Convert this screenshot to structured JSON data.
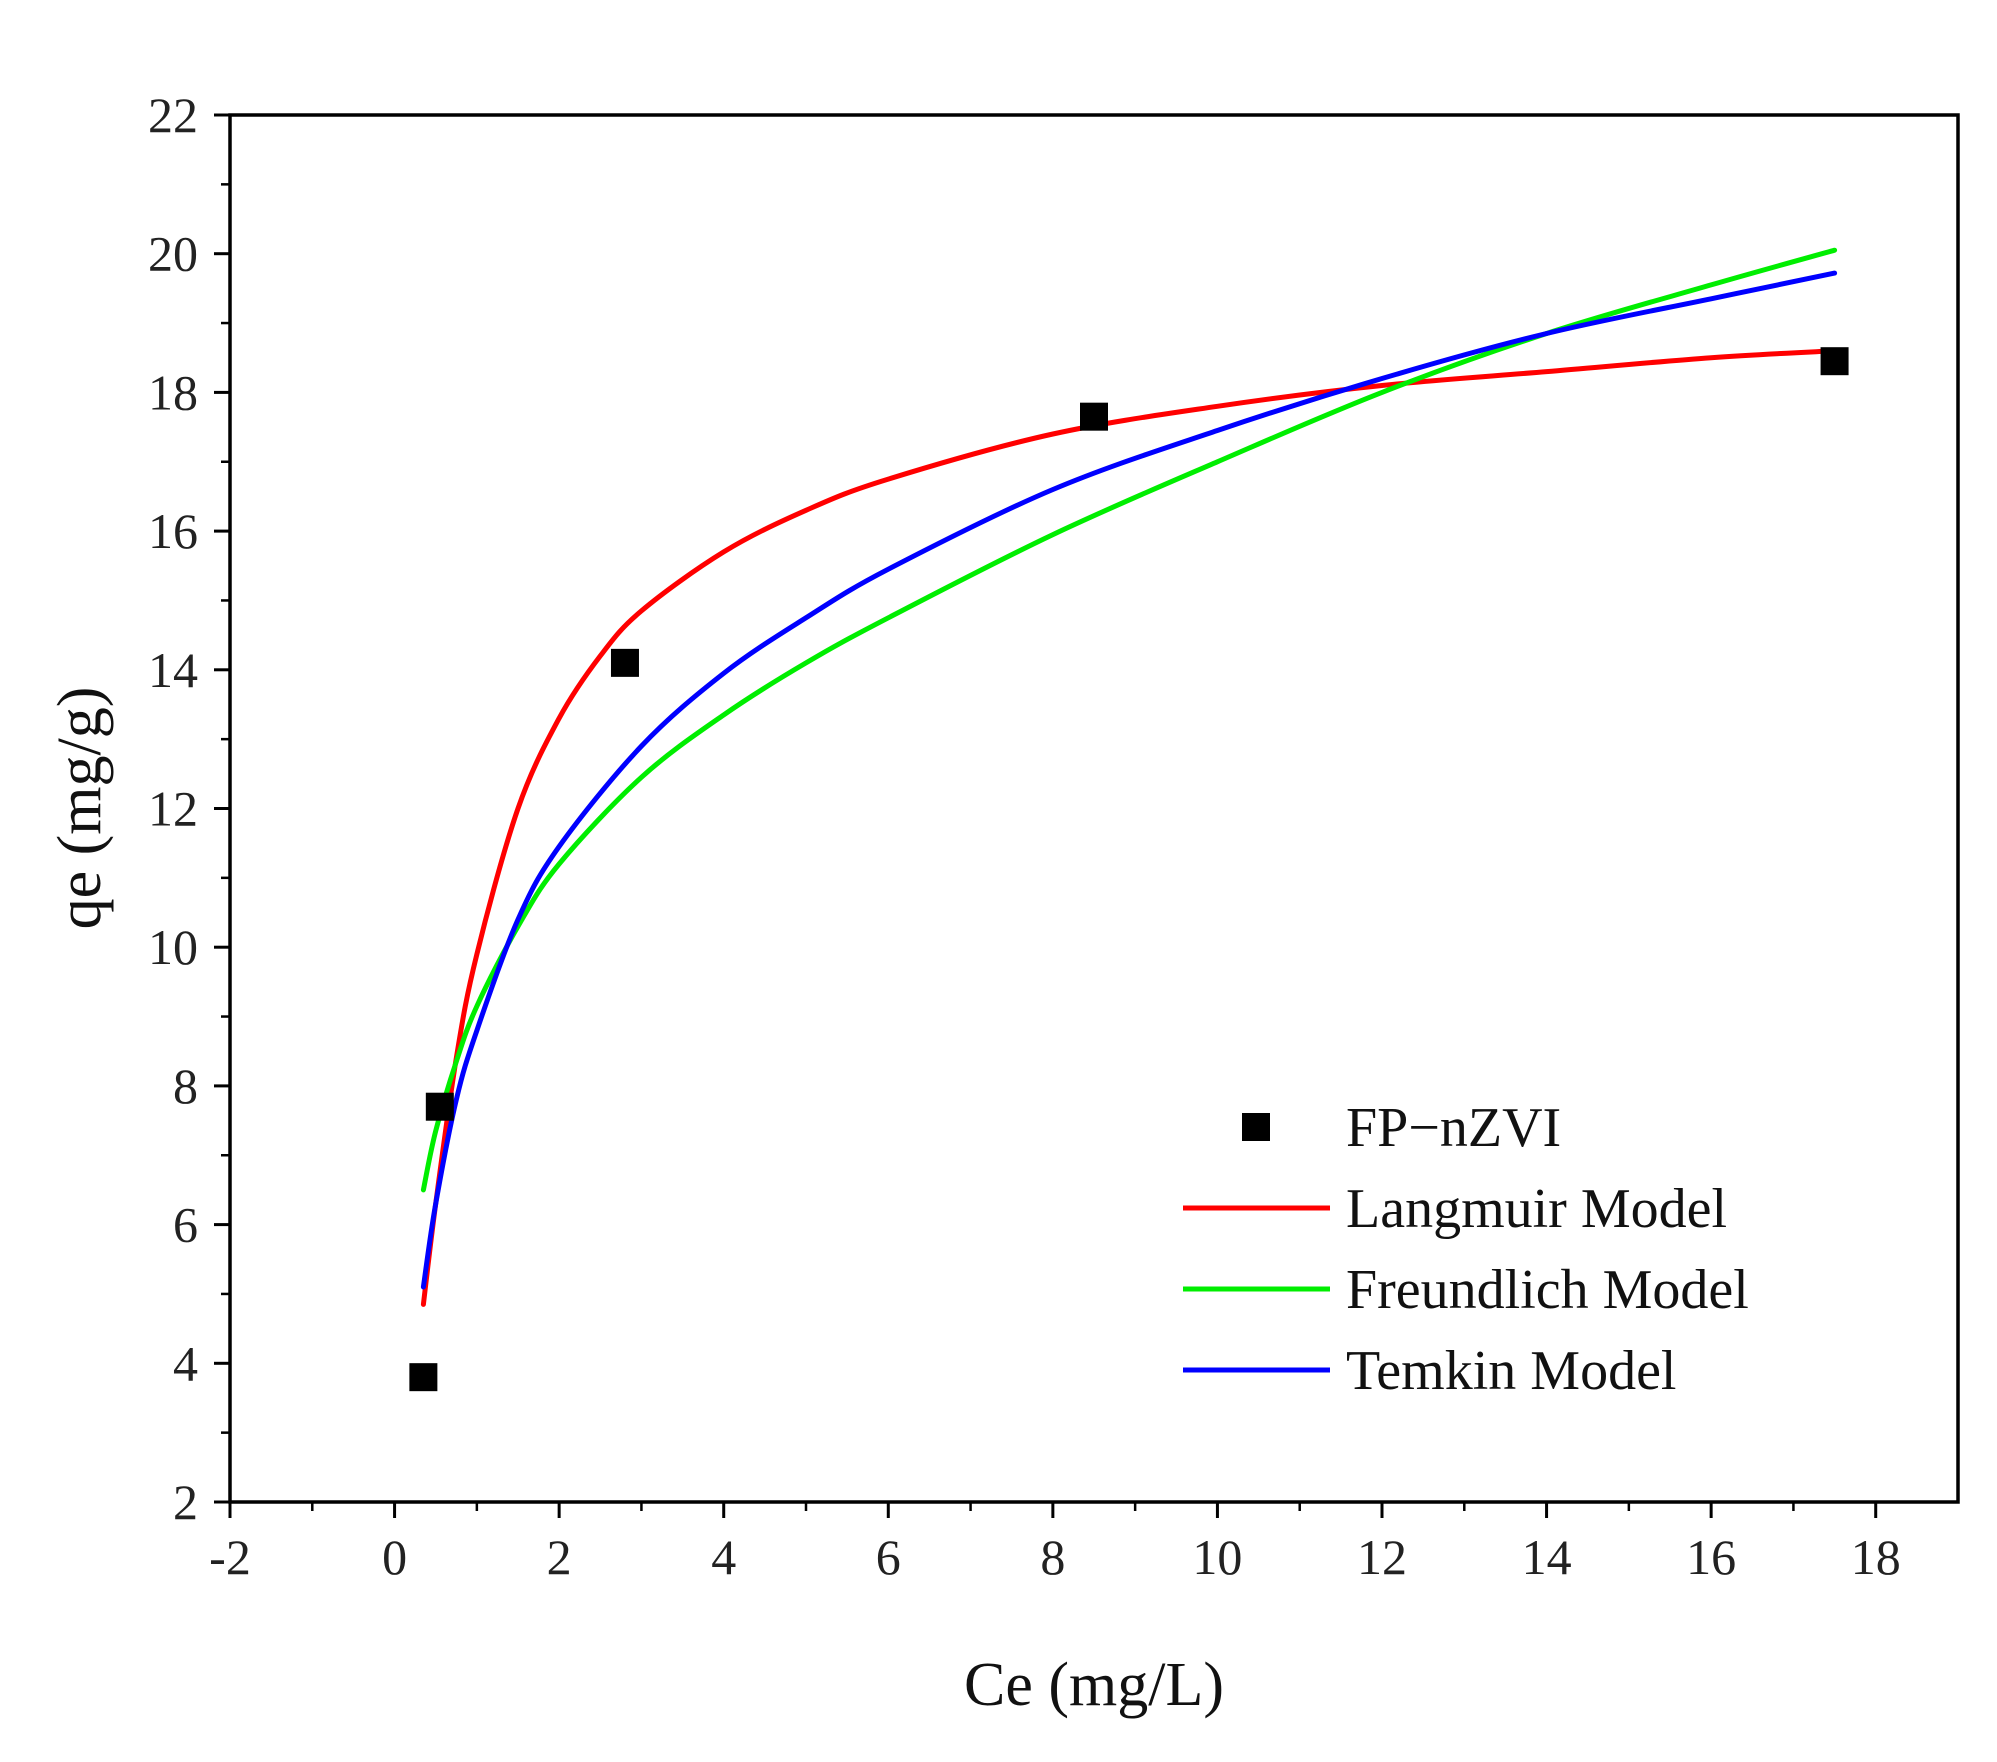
{
  "chart_data": {
    "type": "scatter",
    "title": "",
    "xlabel": "Ce (mg/L)",
    "ylabel": "qe (mg/g)",
    "xlim": [
      -2,
      19
    ],
    "ylim": [
      2,
      22
    ],
    "x_ticks": [
      -2,
      0,
      2,
      4,
      6,
      8,
      10,
      12,
      14,
      16,
      18
    ],
    "y_ticks": [
      2,
      4,
      6,
      8,
      10,
      12,
      14,
      16,
      18,
      20,
      22
    ],
    "grid": false,
    "legend_position": "lower-right",
    "series": [
      {
        "name": "FP−nZVI",
        "kind": "scatter",
        "marker": "square",
        "color": "#000000",
        "x": [
          0.35,
          0.55,
          2.8,
          8.5,
          17.5
        ],
        "y": [
          3.8,
          7.7,
          14.1,
          17.65,
          18.45
        ]
      },
      {
        "name": "Langmuir Model",
        "kind": "line",
        "color": "#ff0000",
        "x": [
          0.35,
          0.5,
          0.75,
          1.0,
          1.5,
          2.0,
          2.5,
          3.0,
          4.0,
          5.0,
          6.0,
          8.0,
          10.0,
          12.0,
          14.0,
          16.0,
          17.5
        ],
        "y": [
          4.85,
          6.3,
          8.4,
          9.9,
          12.0,
          13.3,
          14.2,
          14.85,
          15.7,
          16.3,
          16.75,
          17.4,
          17.8,
          18.1,
          18.3,
          18.5,
          18.6
        ]
      },
      {
        "name": "Freundlich Model",
        "kind": "line",
        "color": "#00ee00",
        "x": [
          0.35,
          0.5,
          0.75,
          1.0,
          1.5,
          2.0,
          3.0,
          4.0,
          5.0,
          6.0,
          8.0,
          10.0,
          12.0,
          14.0,
          16.0,
          17.5
        ],
        "y": [
          6.5,
          7.35,
          8.35,
          9.15,
          10.3,
          11.2,
          12.45,
          13.35,
          14.1,
          14.75,
          15.95,
          17.0,
          18.0,
          18.85,
          19.55,
          20.05
        ]
      },
      {
        "name": "Temkin Model",
        "kind": "line",
        "color": "#0000ff",
        "x": [
          0.35,
          0.5,
          0.75,
          1.0,
          1.5,
          2.0,
          3.0,
          4.0,
          5.0,
          6.0,
          8.0,
          10.0,
          12.0,
          14.0,
          16.0,
          17.5
        ],
        "y": [
          5.1,
          6.3,
          7.8,
          8.8,
          10.4,
          11.45,
          12.9,
          13.95,
          14.75,
          15.45,
          16.6,
          17.45,
          18.2,
          18.85,
          19.35,
          19.72
        ]
      }
    ]
  }
}
